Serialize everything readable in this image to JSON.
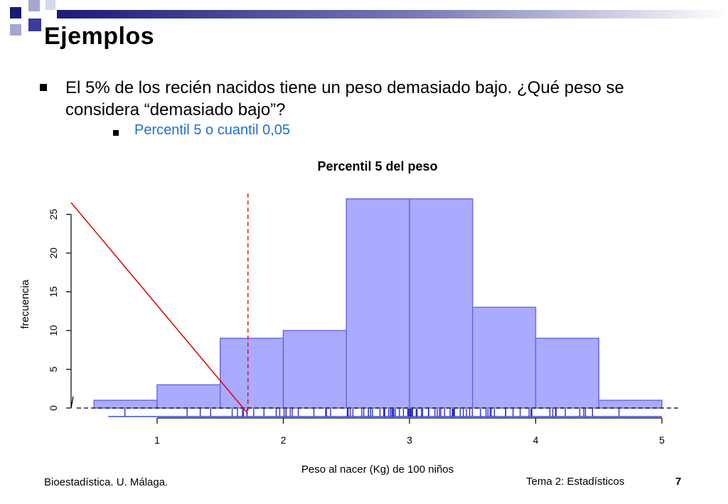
{
  "slide": {
    "title": "Ejemplos",
    "bullet_main": "El 5% de los recién nacidos tiene un peso demasiado bajo. ¿Qué peso se considera “demasiado bajo”?",
    "bullet_sub": "Percentil 5 o cuantil 0,05",
    "footer_left": "Bioestadística. U. Málaga.",
    "footer_right": "Tema 2: Estadísticos",
    "page_number": "7",
    "accent_color": "#1f6fd6"
  },
  "chart_data": {
    "type": "bar",
    "title": "Percentil 5 del peso",
    "xlabel": "Peso al nacer (Kg) de 100 niños",
    "ylabel": "frecuencia",
    "x_ticks": [
      "1",
      "2",
      "3",
      "4",
      "5"
    ],
    "y_ticks": [
      "0",
      "5",
      "10",
      "15",
      "20",
      "25"
    ],
    "xlim": [
      0.5,
      5
    ],
    "ylim": [
      0,
      25
    ],
    "bins": [
      {
        "start": 0.5,
        "end": 1.0,
        "count": 1
      },
      {
        "start": 1.0,
        "end": 1.5,
        "count": 3
      },
      {
        "start": 1.5,
        "end": 2.0,
        "count": 9
      },
      {
        "start": 2.0,
        "end": 2.5,
        "count": 10
      },
      {
        "start": 2.5,
        "end": 3.0,
        "count": 27
      },
      {
        "start": 3.0,
        "end": 3.5,
        "count": 27
      },
      {
        "start": 3.5,
        "end": 4.0,
        "count": 13
      },
      {
        "start": 4.0,
        "end": 4.5,
        "count": 9
      },
      {
        "start": 4.5,
        "end": 5.0,
        "count": 1
      }
    ],
    "percentile_5": 1.72,
    "bar_color": "#aaaaff",
    "bar_edge_color": "#6a6ae0",
    "marker_color": "#e00000",
    "rug_color": "#2222cc"
  }
}
